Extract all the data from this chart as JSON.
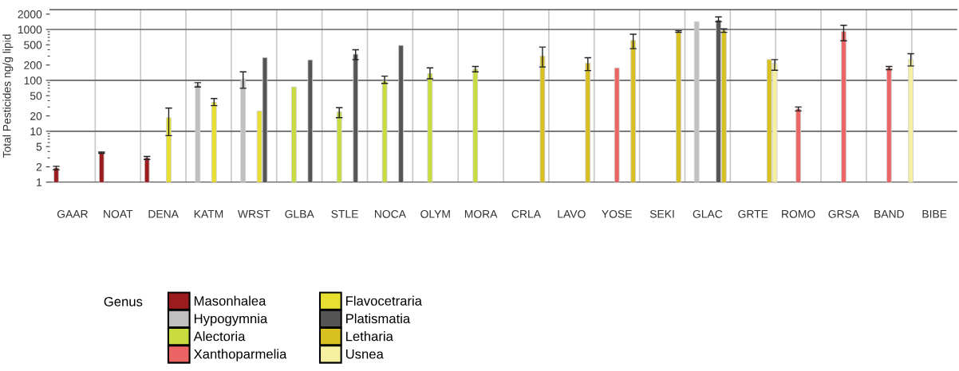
{
  "chart_data": {
    "type": "bar",
    "ylabel": "Total Pesticides ng/g lipid",
    "legend_title": "Genus",
    "legend": "bottom left",
    "grid": true,
    "log": true,
    "categories": [
      "GAAR",
      "NOAT",
      "DENA",
      "KATM",
      "WRST",
      "GLBA",
      "STLE",
      "NOCA",
      "OLYM",
      "MORA",
      "CRLA",
      "LAVO",
      "YOSE",
      "SEKI",
      "GLAC",
      "GRTE",
      "ROMO",
      "GRSA",
      "BAND",
      "BIBE"
    ],
    "ylim": [
      1,
      2450
    ],
    "yticks": [
      1,
      2,
      5,
      10,
      20,
      50,
      100,
      200,
      500,
      1000,
      2000
    ],
    "series": [
      {
        "name": "Masonhalea",
        "color": "#9b1b1f",
        "values": [
          1.9,
          3.8,
          3.0,
          null,
          null,
          null,
          null,
          null,
          null,
          null,
          null,
          null,
          null,
          null,
          null,
          null,
          null,
          null,
          null,
          null
        ],
        "errors": [
          0.15,
          0.1,
          0.2,
          null,
          null,
          null,
          null,
          null,
          null,
          null,
          null,
          null,
          null,
          null,
          null,
          null,
          null,
          null,
          null,
          null
        ]
      },
      {
        "name": "Hypogymnia",
        "color": "#c0c0c0",
        "values": [
          null,
          null,
          null,
          81,
          106,
          null,
          null,
          null,
          null,
          null,
          null,
          null,
          null,
          null,
          1420,
          null,
          null,
          null,
          null,
          null
        ],
        "errors": [
          null,
          null,
          null,
          [
            74,
            90
          ],
          [
            70,
            147
          ],
          null,
          null,
          null,
          null,
          null,
          null,
          null,
          null,
          null,
          null,
          null,
          null,
          null,
          null,
          null
        ]
      },
      {
        "name": "Alectoria",
        "color": "#c8dc40",
        "values": [
          null,
          null,
          null,
          null,
          null,
          74,
          24,
          98,
          137,
          168,
          null,
          null,
          null,
          null,
          null,
          null,
          null,
          null,
          null,
          null
        ],
        "errors": [
          null,
          null,
          null,
          null,
          null,
          null,
          [
            18.5,
            29
          ],
          [
            87,
            121
          ],
          [
            107,
            176
          ],
          [
            147,
            187
          ],
          null,
          null,
          null,
          null,
          null,
          null,
          null,
          null,
          null,
          null
        ]
      },
      {
        "name": "Xanthoparmelia",
        "color": "#ec6464",
        "values": [
          null,
          null,
          null,
          null,
          null,
          null,
          null,
          null,
          null,
          null,
          null,
          null,
          176,
          null,
          null,
          null,
          27.5,
          910,
          174,
          null
        ],
        "errors": [
          null,
          null,
          null,
          null,
          null,
          null,
          null,
          null,
          null,
          null,
          null,
          null,
          null,
          null,
          null,
          null,
          [
            25,
            30
          ],
          [
            600,
            1210
          ],
          [
            162,
            187
          ],
          null
        ]
      },
      {
        "name": "Flavocetraria",
        "color": "#e8e030",
        "values": [
          null,
          null,
          18.5,
          37,
          25,
          null,
          null,
          null,
          null,
          null,
          null,
          null,
          null,
          null,
          null,
          null,
          null,
          null,
          null,
          null
        ],
        "errors": [
          null,
          null,
          [
            8.2,
            28.5
          ],
          [
            32,
            44
          ],
          null,
          null,
          null,
          null,
          null,
          null,
          null,
          null,
          null,
          null,
          null,
          null,
          null,
          null,
          null,
          null
        ]
      },
      {
        "name": "Platismatia",
        "color": "#555555",
        "values": [
          null,
          null,
          null,
          null,
          280,
          253,
          326,
          485,
          null,
          null,
          null,
          null,
          null,
          null,
          1520,
          null,
          null,
          null,
          null,
          null
        ],
        "errors": [
          null,
          null,
          null,
          null,
          null,
          null,
          [
            256,
            400
          ],
          null,
          null,
          null,
          null,
          null,
          null,
          null,
          [
            1420,
            1760
          ],
          null,
          null,
          null,
          null,
          null
        ]
      },
      {
        "name": "Letharia",
        "color": "#d8c020",
        "values": [
          null,
          null,
          null,
          null,
          null,
          null,
          null,
          null,
          null,
          null,
          300,
          219,
          610,
          908,
          953,
          256,
          null,
          null,
          null,
          null
        ],
        "errors": [
          null,
          null,
          null,
          null,
          null,
          null,
          null,
          null,
          null,
          null,
          [
            183,
            450
          ],
          [
            156,
            279
          ],
          [
            420,
            805
          ],
          [
            876,
            942
          ],
          [
            876,
            1025
          ],
          null,
          null,
          null,
          null,
          null
        ]
      },
      {
        "name": "Usnea",
        "color": "#f4f0a0",
        "values": [
          null,
          null,
          null,
          null,
          null,
          null,
          null,
          null,
          null,
          null,
          null,
          null,
          null,
          null,
          null,
          214,
          null,
          null,
          256,
          null
        ],
        "errors": [
          null,
          null,
          null,
          null,
          null,
          null,
          null,
          null,
          null,
          null,
          null,
          null,
          null,
          null,
          null,
          [
            158,
            256
          ],
          null,
          null,
          [
            192,
            334
          ],
          null
        ]
      }
    ]
  }
}
